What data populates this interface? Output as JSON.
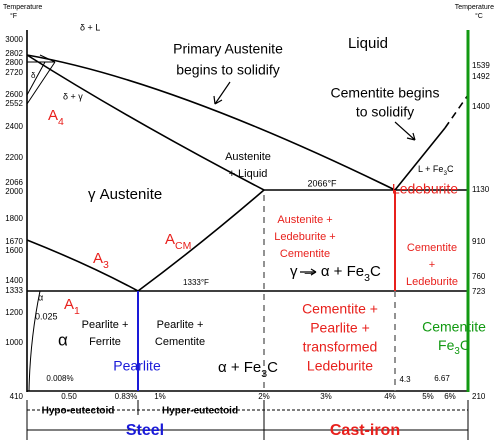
{
  "left_axis": {
    "title": "Temperature",
    "unit": "°F",
    "labels": [
      3000,
      2802,
      2800,
      2720,
      2600,
      2552,
      2400,
      2200,
      2066,
      2000,
      1800,
      1670,
      1600,
      1400,
      1333,
      1200,
      1000,
      410
    ]
  },
  "right_axis": {
    "title": "Temperature",
    "unit": "°C",
    "labels": [
      1539,
      1492,
      1400,
      1130,
      910,
      760,
      723,
      210
    ]
  },
  "x_axis": {
    "labels": [
      "0.50",
      "0.83%",
      "1%",
      "2%",
      "3%",
      "4%",
      "5%",
      "6%"
    ],
    "hypo": "Hypo-eutectoid",
    "hyper": "Hyper-eutectoid",
    "steel": "Steel",
    "cast_iron": "Cast-iron"
  },
  "labels": {
    "delta_l": "δ + L",
    "delta": "δ",
    "delta_gamma": "δ + γ",
    "a4": [
      "A",
      "4"
    ],
    "primary_1": "Primary Austenite",
    "primary_2": "begins to solidify",
    "liquid": "Liquid",
    "cem_begin_1": "Cementite begins",
    "cem_begin_2": "to solidify",
    "aus_liq_1": "Austenite",
    "aus_liq_2": "+ Liquid",
    "t2066": "2066°F",
    "austenite": "γ  Austenite",
    "l_fe3c": [
      "L + Fe",
      "3",
      "C"
    ],
    "alc_1": "Austenite +",
    "alc_2": "Ledeburite +",
    "alc_3": "Cementite",
    "ledeburite": "Ledeburite",
    "cl_1": "Cementite",
    "cl_2": "+",
    "cl_3": "Ledeburite",
    "acm": [
      "A",
      "CM"
    ],
    "a3": [
      "A",
      "3"
    ],
    "t1333": "1333°F",
    "gamma_alpha": [
      "γ → α + Fe",
      "3",
      "C"
    ],
    "alpha_small": "α",
    "c0025": "0.025",
    "a1": [
      "A",
      "1"
    ],
    "pf_1": "Pearlite +",
    "pf_2": "Ferrite",
    "alpha_big": "α",
    "pc_1": "Pearlite +",
    "pc_2": "Cementite",
    "pearlite": "Pearlite",
    "alpha_fe3c": [
      "α + Fe",
      "3",
      "C"
    ],
    "cpt_1": "Cementite +",
    "cpt_2": "Pearlite +",
    "cpt_3": "transformed",
    "cpt_4": "Ledeburite",
    "cementite": "Cementite",
    "fe3c": [
      "Fe",
      "3",
      "C"
    ],
    "c0008": "0.008%",
    "c43": "4.3",
    "c667": "6.67"
  }
}
